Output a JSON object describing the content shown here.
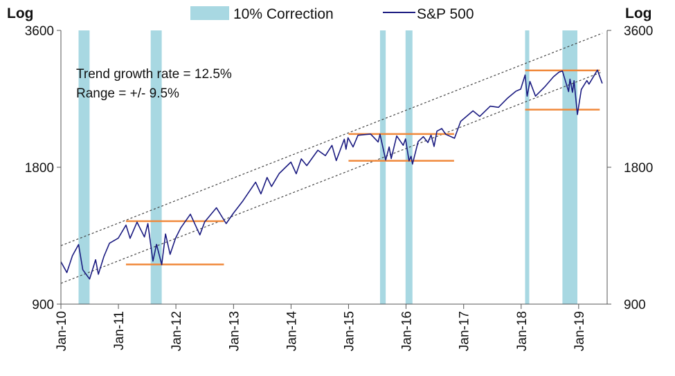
{
  "chart_data": {
    "type": "line",
    "y_scale": "log",
    "ylim": [
      900,
      3600
    ],
    "y_ticks": [
      900,
      1800,
      3600
    ],
    "y_tick_labels": [
      "900",
      "1800",
      "3600"
    ],
    "y_axis_label_left": "Log",
    "y_axis_label_right": "Log",
    "x_ticks": [
      "Jan-10",
      "Jan-11",
      "Jan-12",
      "Jan-13",
      "Jan-14",
      "Jan-15",
      "Jan-16",
      "Jan-17",
      "Jan-18",
      "Jan-19"
    ],
    "legend": [
      {
        "label": "10% Correction",
        "kind": "band",
        "color": "#a8d8e2"
      },
      {
        "label": "S&P 500",
        "kind": "line",
        "color": "#1a1a80"
      }
    ],
    "legend_position": "top-center",
    "annotations": [
      "Trend growth rate = 12.5%",
      "Range = +/- 9.5%"
    ],
    "grid": false,
    "correction_periods": [
      [
        "2010-04-23",
        "2010-07-02"
      ],
      [
        "2011-07-25",
        "2011-10-03"
      ],
      [
        "2015-07-20",
        "2015-08-25"
      ],
      [
        "2015-12-29",
        "2016-02-11"
      ],
      [
        "2018-01-26",
        "2018-02-08"
      ],
      [
        "2018-09-20",
        "2018-12-24"
      ]
    ],
    "trend_channel": {
      "growth_rate": 0.125,
      "upper": [
        [
          "2010-01-01",
          1210
        ],
        [
          "2019-06-01",
          3550
        ]
      ],
      "lower": [
        [
          "2010-01-01",
          1000
        ],
        [
          "2019-06-01",
          2920
        ]
      ]
    },
    "range_lines": [
      {
        "start": "2011-02-18",
        "end": "2012-11-01",
        "value": 1370
      },
      {
        "start": "2011-02-18",
        "end": "2012-11-01",
        "value": 1100
      },
      {
        "start": "2015-01-01",
        "end": "2016-11-01",
        "value": 2130
      },
      {
        "start": "2015-01-01",
        "end": "2016-11-01",
        "value": 1860
      },
      {
        "start": "2018-01-26",
        "end": "2019-05-15",
        "value": 2940
      },
      {
        "start": "2018-01-26",
        "end": "2019-05-15",
        "value": 2410
      }
    ],
    "series": [
      {
        "name": "S&P 500",
        "color": "#1a1a80",
        "points": [
          [
            "2010-01-01",
            1115
          ],
          [
            "2010-02-08",
            1056
          ],
          [
            "2010-03-15",
            1150
          ],
          [
            "2010-04-23",
            1217
          ],
          [
            "2010-05-20",
            1071
          ],
          [
            "2010-07-02",
            1022
          ],
          [
            "2010-08-09",
            1127
          ],
          [
            "2010-08-27",
            1047
          ],
          [
            "2010-10-01",
            1146
          ],
          [
            "2010-11-05",
            1225
          ],
          [
            "2010-12-31",
            1257
          ],
          [
            "2011-02-18",
            1343
          ],
          [
            "2011-03-16",
            1256
          ],
          [
            "2011-04-29",
            1363
          ],
          [
            "2011-06-15",
            1265
          ],
          [
            "2011-07-07",
            1353
          ],
          [
            "2011-08-08",
            1119
          ],
          [
            "2011-08-31",
            1218
          ],
          [
            "2011-10-03",
            1099
          ],
          [
            "2011-10-27",
            1284
          ],
          [
            "2011-11-25",
            1158
          ],
          [
            "2011-12-30",
            1257
          ],
          [
            "2012-02-01",
            1324
          ],
          [
            "2012-04-02",
            1419
          ],
          [
            "2012-06-01",
            1278
          ],
          [
            "2012-07-02",
            1365
          ],
          [
            "2012-09-14",
            1466
          ],
          [
            "2012-11-15",
            1353
          ],
          [
            "2012-12-31",
            1426
          ],
          [
            "2013-03-01",
            1518
          ],
          [
            "2013-05-21",
            1669
          ],
          [
            "2013-06-24",
            1573
          ],
          [
            "2013-08-02",
            1709
          ],
          [
            "2013-08-30",
            1633
          ],
          [
            "2013-10-18",
            1744
          ],
          [
            "2013-12-31",
            1848
          ],
          [
            "2014-02-03",
            1742
          ],
          [
            "2014-03-07",
            1878
          ],
          [
            "2014-04-11",
            1815
          ],
          [
            "2014-06-20",
            1962
          ],
          [
            "2014-08-07",
            1909
          ],
          [
            "2014-09-18",
            2011
          ],
          [
            "2014-10-15",
            1862
          ],
          [
            "2014-12-05",
            2075
          ],
          [
            "2014-12-16",
            1972
          ],
          [
            "2014-12-29",
            2090
          ],
          [
            "2015-01-30",
            1995
          ],
          [
            "2015-03-02",
            2117
          ],
          [
            "2015-05-21",
            2130
          ],
          [
            "2015-07-08",
            2046
          ],
          [
            "2015-07-20",
            2128
          ],
          [
            "2015-08-25",
            1867
          ],
          [
            "2015-09-16",
            1995
          ],
          [
            "2015-09-29",
            1881
          ],
          [
            "2015-11-03",
            2109
          ],
          [
            "2015-12-14",
            2012
          ],
          [
            "2015-12-29",
            2078
          ],
          [
            "2016-01-20",
            1859
          ],
          [
            "2016-02-02",
            1903
          ],
          [
            "2016-02-11",
            1829
          ],
          [
            "2016-03-18",
            2050
          ],
          [
            "2016-04-20",
            2102
          ],
          [
            "2016-05-19",
            2040
          ],
          [
            "2016-06-08",
            2119
          ],
          [
            "2016-06-27",
            2000
          ],
          [
            "2016-07-15",
            2161
          ],
          [
            "2016-08-15",
            2190
          ],
          [
            "2016-09-09",
            2127
          ],
          [
            "2016-11-04",
            2085
          ],
          [
            "2016-12-13",
            2271
          ],
          [
            "2017-03-01",
            2395
          ],
          [
            "2017-04-13",
            2329
          ],
          [
            "2017-06-19",
            2453
          ],
          [
            "2017-08-10",
            2438
          ],
          [
            "2017-10-05",
            2552
          ],
          [
            "2017-11-30",
            2647
          ],
          [
            "2017-12-29",
            2673
          ],
          [
            "2018-01-26",
            2872
          ],
          [
            "2018-02-08",
            2581
          ],
          [
            "2018-02-26",
            2779
          ],
          [
            "2018-04-02",
            2581
          ],
          [
            "2018-05-31",
            2705
          ],
          [
            "2018-07-25",
            2846
          ],
          [
            "2018-08-29",
            2914
          ],
          [
            "2018-09-20",
            2930
          ],
          [
            "2018-10-29",
            2641
          ],
          [
            "2018-11-07",
            2813
          ],
          [
            "2018-11-23",
            2632
          ],
          [
            "2018-12-03",
            2790
          ],
          [
            "2018-12-24",
            2351
          ],
          [
            "2019-01-18",
            2670
          ],
          [
            "2019-02-22",
            2792
          ],
          [
            "2019-03-08",
            2743
          ],
          [
            "2019-04-30",
            2945
          ],
          [
            "2019-05-15",
            2850
          ],
          [
            "2019-05-31",
            2752
          ]
        ]
      }
    ]
  }
}
